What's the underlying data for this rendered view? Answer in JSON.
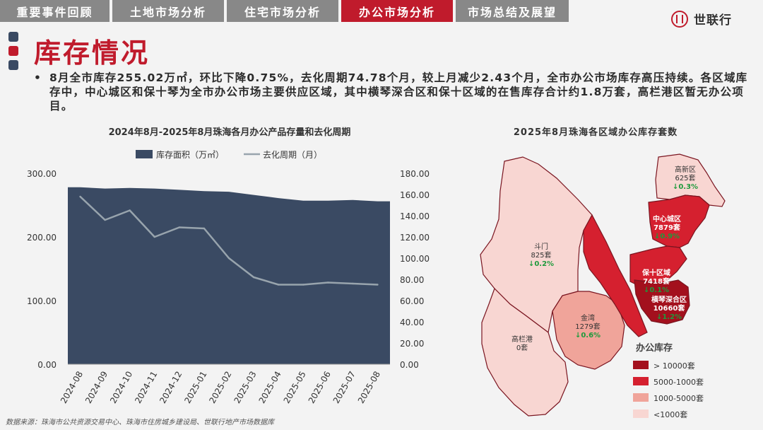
{
  "tabs": [
    {
      "label": "重要事件回顾",
      "active": false
    },
    {
      "label": "土地市场分析",
      "active": false
    },
    {
      "label": "住宅市场分析",
      "active": false
    },
    {
      "label": "办公市场分析",
      "active": true
    },
    {
      "label": "市场总结及展望",
      "active": false
    }
  ],
  "logo": {
    "text": "世联行"
  },
  "page_title": "库存情况",
  "bullet_text": "8月全市库存255.02万㎡，环比下降0.75%，去化周期74.78个月，较上月减少2.43个月，全市办公市场库存高压持续。各区域库存中，中心城区和保十琴为全市办公市场主要供应区域，其中横琴深合区和保十区域的在售库存合计约1.8万套，高栏港区暂无办公项目。",
  "source_note": "数据来源：珠海市公共资源交易中心、珠海市住房城乡建设局、世联行地产市场数据库",
  "colors": {
    "brand_red": "#c01b2c",
    "tab_gray": "#888888",
    "area_fill": "#3a4a63",
    "line_gray": "#98a4ad"
  },
  "chart_data": [
    {
      "type": "area",
      "title": "2024年8月-2025年8月珠海各月办公产品存量和去化周期",
      "categories": [
        "2024-08",
        "2024-09",
        "2024-10",
        "2024-11",
        "2024-12",
        "2025-01",
        "2025-02",
        "2025-03",
        "2025-04",
        "2025-05",
        "2025-06",
        "2025-07",
        "2025-08"
      ],
      "series": [
        {
          "name": "库存面积（万㎡）",
          "type": "area",
          "axis": "left",
          "values": [
            278,
            276,
            277,
            276,
            274,
            272,
            271,
            266,
            261,
            257,
            257,
            258,
            256
          ]
        },
        {
          "name": "去化周期（月）",
          "type": "line",
          "axis": "right",
          "values": [
            158,
            136,
            145,
            120,
            129,
            128,
            100,
            82,
            75,
            75,
            77,
            76,
            75
          ]
        }
      ],
      "y_left": {
        "range": [
          0,
          300
        ],
        "ticks": [
          "0.00",
          "100.00",
          "200.00",
          "300.00"
        ]
      },
      "y_right": {
        "range": [
          0,
          180
        ],
        "ticks": [
          "0.00",
          "20.00",
          "40.00",
          "60.00",
          "80.00",
          "100.00",
          "120.00",
          "140.00",
          "160.00",
          "180.00"
        ]
      },
      "legend_position": "top",
      "grid": false
    },
    {
      "type": "map",
      "title": "2025年8月珠海各区域办公库存套数",
      "regions": [
        {
          "name": "高新区",
          "units": "625套",
          "change": "↓0.3%",
          "level": "<1000套"
        },
        {
          "name": "中心城区",
          "units": "7879套",
          "change": "↓0.9%",
          "level": "5000-1000套"
        },
        {
          "name": "斗门",
          "units": "825套",
          "change": "↓0.2%",
          "level": "<1000套"
        },
        {
          "name": "保十区域",
          "units": "7418套",
          "change": "↓0.1%",
          "level": "5000-1000套"
        },
        {
          "name": "横琴深合区",
          "units": "10660套",
          "change": "↓1.2%",
          "level": "> 10000套"
        },
        {
          "name": "金湾",
          "units": "1279套",
          "change": "↓0.6%",
          "level": "1000-5000套"
        },
        {
          "name": "高栏港",
          "units": "0套",
          "change": "",
          "level": "<1000套"
        }
      ],
      "legend_title": "办公库存",
      "legend": [
        {
          "label": "> 10000套",
          "color": "#a3101d"
        },
        {
          "label": "5000-1000套",
          "color": "#d5202f"
        },
        {
          "label": "1000-5000套",
          "color": "#f0a49a"
        },
        {
          "label": "<1000套",
          "color": "#f8d6d2"
        }
      ]
    }
  ]
}
